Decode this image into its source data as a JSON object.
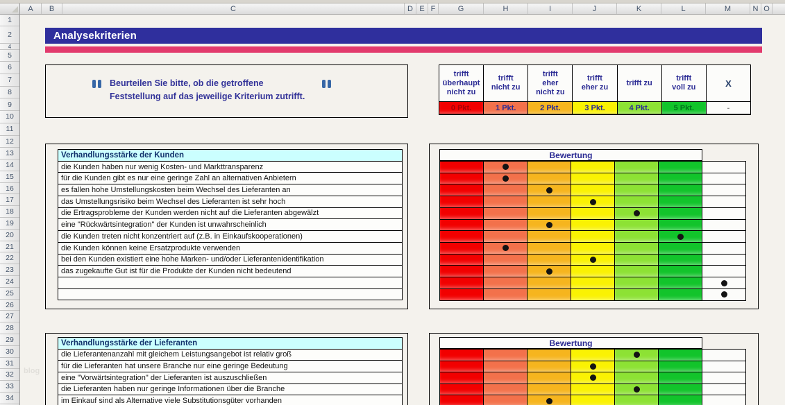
{
  "title": {
    "text": "Analysekriterien"
  },
  "instruction": {
    "line1": "Beurteilen Sie bitte, ob die getroffene",
    "line2": "Feststellung auf das jeweilige Kriterium zutrifft."
  },
  "rating_legend": {
    "levels": [
      {
        "label": "trifft\nüberhaupt\nnicht zu",
        "points": "0 Pkt.",
        "color": "#F20000",
        "points_text_color": "#A50005"
      },
      {
        "label": "trifft\nnicht zu",
        "points": "1 Pkt.",
        "color": "#F3714B",
        "points_text_color": "#2B2B94"
      },
      {
        "label": "trifft\neher\nnicht zu",
        "points": "2 Pkt.",
        "color": "#F6B51E",
        "points_text_color": "#2B2B94"
      },
      {
        "label": "trifft\neher zu",
        "points": "3 Pkt.",
        "color": "#FAF203",
        "points_text_color": "#2B2B94"
      },
      {
        "label": "trifft zu",
        "points": "4 Pkt.",
        "color": "#8DE234",
        "points_text_color": "#2B2B94"
      },
      {
        "label": "trifft\nvoll zu",
        "points": "5 Pkt.",
        "color": "#12C42B",
        "points_text_color": "#00731C"
      }
    ],
    "x_column": {
      "label": "X",
      "points": "-"
    }
  },
  "sections": [
    {
      "header": "Verhandlungsstärke der Kunden",
      "bewertung_label": "Bewertung",
      "criteria": [
        "die Kunden haben nur wenig Kosten- und Markttransparenz",
        "für die Kunden gibt es nur eine geringe Zahl an alternativen Anbietern",
        "es fallen hohe Umstellungskosten beim Wechsel des Lieferanten an",
        "das Umstellungsrisiko beim Wechsel des Lieferanten ist sehr hoch",
        "die Ertragsprobleme der Kunden werden nicht auf die Lieferanten abgewälzt",
        "eine \"Rückwärtsintegration\" der Kunden ist unwahrscheinlich",
        "die Kunden treten nicht konzentriert auf (z.B. in Einkaufskooperationen)",
        "die Kunden können keine Ersatzprodukte verwenden",
        "bei den Kunden existiert eine hohe Marken- und/oder Lieferantenidentifikation",
        "das zugekaufte Gut ist für die Produkte der Kunden nicht bedeutend"
      ],
      "empty_rows": 2,
      "ratings": [
        1,
        1,
        2,
        3,
        4,
        2,
        5,
        1,
        3,
        2,
        "X",
        "X"
      ]
    },
    {
      "header": "Verhandlungsstärke der Lieferanten",
      "bewertung_label": "Bewertung",
      "criteria": [
        "die Lieferantenanzahl mit gleichem Leistungsangebot ist relativ groß",
        "für die Lieferanten hat unsere Branche nur eine geringe Bedeutung",
        "eine \"Vorwärtsintegration\" der Lieferanten ist auszuschließen",
        "die Lieferanten haben nur geringe Informationen über die Branche",
        "im Einkauf sind als Alternative viele Substitutionsgüter vorhanden"
      ],
      "empty_rows": 0,
      "ratings": [
        4,
        3,
        3,
        4,
        2
      ]
    }
  ],
  "spreadsheet": {
    "column_letters": [
      "A",
      "B",
      "C",
      "D",
      "E",
      "F",
      "G",
      "H",
      "I",
      "J",
      "K",
      "L",
      "M",
      "N",
      "O"
    ],
    "row_numbers": [
      "1",
      "2",
      "4",
      "5",
      "6",
      "7",
      "8",
      "9",
      "10",
      "11",
      "12",
      "13",
      "14",
      "15",
      "16",
      "17",
      "18",
      "19",
      "20",
      "21",
      "22",
      "23",
      "24",
      "25",
      "26",
      "27",
      "28",
      "29",
      "30",
      "31",
      "32",
      "33",
      "34"
    ]
  },
  "watermark": "blog"
}
